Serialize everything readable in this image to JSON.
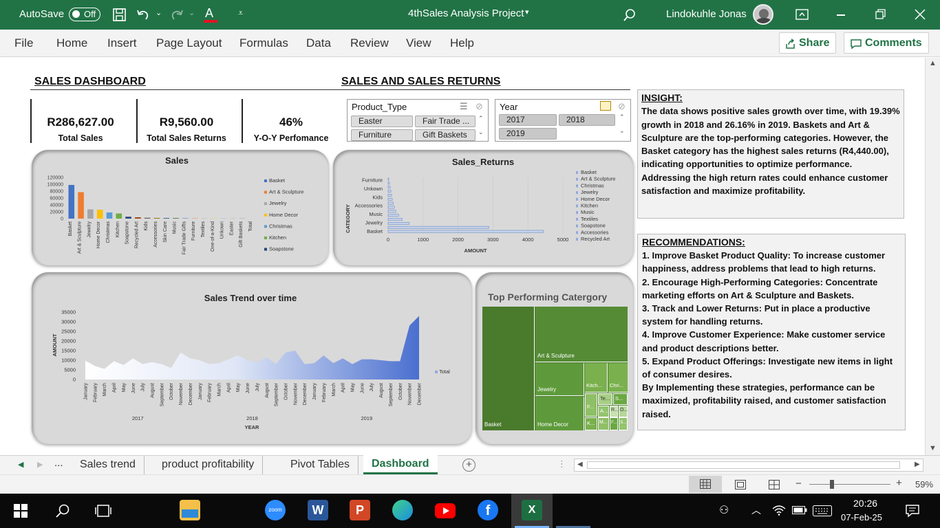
{
  "titlebar": {
    "autosave_label": "AutoSave",
    "autosave_state": "Off",
    "title": "4thSales Analysis Project",
    "user": "Lindokuhle Jonas"
  },
  "ribbon": {
    "menus": [
      "File",
      "Home",
      "Insert",
      "Page Layout",
      "Formulas",
      "Data",
      "Review",
      "View",
      "Help"
    ],
    "share": "Share",
    "comments": "Comments"
  },
  "dashboard": {
    "heading_left": "SALES DASHBOARD",
    "heading_right": "SALES AND SALES RETURNS",
    "kpis": [
      {
        "value": "R286,627.00",
        "label": "Total Sales"
      },
      {
        "value": "R9,560.00",
        "label": "Total Sales Returns"
      },
      {
        "value": "46%",
        "label": "Y-O-Y Perfomance"
      }
    ],
    "slicer_product": {
      "title": "Product_Type",
      "items": [
        "Easter",
        "Fair Trade ...",
        "Furniture",
        "Gift Baskets"
      ]
    },
    "slicer_year": {
      "title": "Year",
      "items": [
        "2017",
        "2018",
        "2019"
      ]
    },
    "insight": {
      "title": "INSIGHT:",
      "body": "The data shows positive sales growth over time, with 19.39% growth in 2018 and 26.16% in 2019. Baskets and Art & Sculpture are the top-performing categories. However, the Basket category has the highest sales returns (R4,440.00), indicating opportunities to optimize performance. Addressing the high return rates could enhance customer satisfaction and maximize profitability."
    },
    "recommendations": {
      "title": "RECOMMENDATIONS:",
      "items": [
        "1. Improve Basket Product Quality: To increase customer happiness, address problems that lead to high returns.",
        "2. Encourage High-Performing Categories: Concentrate marketing efforts on Art & Sculpture and Baskets.",
        "3. Track and Lower Returns: Put in place a productive system for handling returns.",
        "4. Improve Customer Experience: Make customer service and product descriptions better.",
        "5. Expand Product Offerings: Investigate new items in light of consumer desires.",
        "By Implementing these strategies, performance can be maximized, profitability raised, and customer satisfaction raised."
      ]
    }
  },
  "chart_data": [
    {
      "type": "bar",
      "title": "Sales",
      "categories": [
        "Basket",
        "Art & Sculpture",
        "Jewelry",
        "Home Decor",
        "Christmas",
        "Kitchen",
        "Soapstone",
        "Recycled Art",
        "Kids",
        "Accessories",
        "Skin Care",
        "Music",
        "Fair Trade Gifts",
        "Furniture",
        "Textiles",
        "One-of-a-Kind",
        "Unkown",
        "Easter",
        "Gift Baskets",
        "Total"
      ],
      "values": [
        98000,
        77000,
        27000,
        26000,
        18000,
        15000,
        5500,
        4000,
        2500,
        2000,
        1800,
        1600,
        1400,
        1200,
        1000,
        800,
        600,
        500,
        400,
        0
      ],
      "colors": [
        "#4472c4",
        "#ed7d31",
        "#a5a5a5",
        "#ffc000",
        "#5b9bd5",
        "#70ad47",
        "#264478",
        "#9e480e",
        "#636363",
        "#997300",
        "#255e91",
        "#43682b",
        "#698ed0",
        "#f1975a",
        "#b7b7b7",
        "#ffcd33",
        "#7cafdd",
        "#8cc168",
        "#335aa1",
        "#d26012"
      ],
      "ylim": [
        0,
        120000
      ],
      "yticks": [
        0,
        20000,
        40000,
        60000,
        80000,
        100000,
        120000
      ],
      "legend": [
        "Basket",
        "Art & Sculpture",
        "Jewelry",
        "Home Decor",
        "Christmas",
        "Kitchen",
        "Soapstone"
      ],
      "legend_position": "right"
    },
    {
      "type": "bar",
      "orientation": "horizontal",
      "title": "Sales_Returns",
      "xlabel": "AMOUNT",
      "ylabel": "CATEGORY",
      "categories": [
        "Basket",
        "Art & Sculpture",
        "Jewelry",
        "Christmas",
        "Home Decor",
        "Kitchen",
        "Music",
        "Textiles",
        "Soapstone",
        "Accessories",
        "Recycled Art",
        "Kids",
        "Unkown",
        "Furniture"
      ],
      "category_labels_shown": [
        "Furniture",
        "Unkown",
        "Kids",
        "Accessories",
        "Music",
        "Jewelry",
        "Basket"
      ],
      "values": [
        4440,
        2880,
        600,
        400,
        300,
        220,
        180,
        150,
        120,
        100,
        80,
        60,
        40,
        20
      ],
      "xlim": [
        0,
        5000
      ],
      "xticks": [
        0,
        1000,
        2000,
        3000,
        4000,
        5000
      ],
      "legend": [
        "Basket",
        "Art & Sculpture",
        "Christmas",
        "Jewelry",
        "Home Decor",
        "Kitchen",
        "Music",
        "Textiles",
        "Soapstone",
        "Accessories",
        "Recycled Art"
      ],
      "legend_position": "right"
    },
    {
      "type": "area",
      "title": "Sales Trend over time",
      "xlabel": "YEAR",
      "ylabel": "AMOUNT",
      "months": [
        "January",
        "February",
        "March",
        "April",
        "May",
        "June",
        "July",
        "August",
        "September",
        "October",
        "November",
        "December"
      ],
      "years": [
        "2017",
        "2018",
        "2019"
      ],
      "values": [
        9800,
        7000,
        5500,
        9500,
        7500,
        11000,
        8000,
        9000,
        8000,
        6000,
        14000,
        11000,
        10000,
        8000,
        8500,
        10500,
        12500,
        10000,
        9000,
        11500,
        8000,
        14000,
        15000,
        8000,
        8500,
        12500,
        8500,
        11000,
        8000,
        10500,
        10500,
        10000,
        9500,
        9500,
        28000,
        33000
      ],
      "ylim": [
        0,
        35000
      ],
      "yticks": [
        0,
        5000,
        10000,
        15000,
        20000,
        25000,
        30000,
        35000
      ],
      "legend": [
        "Total"
      ],
      "legend_position": "right"
    },
    {
      "type": "treemap",
      "title": "Top Performing Catergory",
      "labels": [
        "Basket",
        "Art & Sculpture",
        "Jewelry",
        "Home Decor",
        "Kitch...",
        "Chri...",
        "Te...",
        "S...",
        "F...",
        "A...",
        "R...",
        "O...",
        "K...",
        "M...",
        "F...",
        "S..."
      ]
    }
  ],
  "sheet_tabs": {
    "ellipsis": "...",
    "tabs": [
      "Sales trend",
      "product profitability",
      "Pivot Tables",
      "Dashboard"
    ],
    "active": "Dashboard"
  },
  "status": {
    "zoom": "59%"
  },
  "taskbar": {
    "time": "20:26",
    "date": "07-Feb-25",
    "zoom_label": "zoom"
  }
}
